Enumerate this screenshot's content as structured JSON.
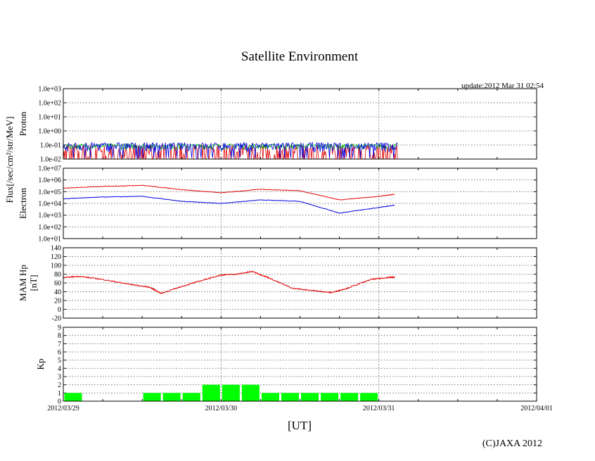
{
  "title": "Satellite Environment",
  "update": "update:2012 Mar 31 02:54",
  "copyright": "(C)JAXA 2012",
  "x_axis_label": "[UT]",
  "flux_label": "Flux[/sec/cm²/str/MeV]",
  "colors": {
    "red": "#e00000",
    "blue": "#0000e0",
    "green": "#00c000",
    "kp": "#00ff00",
    "grid": "#777777"
  },
  "chart_data": [
    {
      "type": "line",
      "name_label": "Proton",
      "log": true,
      "ylim": [
        0.01,
        1000
      ],
      "yticks": [
        "1.0e+03",
        "1.0e+02",
        "1.0e+01",
        "1.0e+00",
        "1.0e-01",
        "1.0e-02"
      ],
      "xlim": [
        "2012/03/29",
        "2012/04/01"
      ],
      "data_end": "2012/03/31 02:54",
      "grid": true,
      "series": [
        {
          "color": "red",
          "level": [
            0.01,
            0.1
          ],
          "note_noise": "dense spikes"
        },
        {
          "color": "green",
          "level": [
            0.05,
            0.12
          ]
        },
        {
          "color": "blue",
          "level": [
            0.03,
            0.15
          ]
        }
      ]
    },
    {
      "type": "line",
      "name_label": "Electron",
      "log": true,
      "ylim": [
        10,
        10000000
      ],
      "yticks": [
        "1.0e+07",
        "1.0e+06",
        "1.0e+05",
        "1.0e+04",
        "1.0e+03",
        "1.0e+02",
        "1.0e+01"
      ],
      "xlim": [
        "2012/03/29",
        "2012/04/01"
      ],
      "grid": true,
      "series": [
        {
          "color": "red",
          "x_days": [
            0,
            0.25,
            0.5,
            0.75,
            1.0,
            1.25,
            1.5,
            1.75,
            2.0,
            2.1
          ],
          "values": [
            200000,
            280000,
            350000,
            150000,
            80000,
            160000,
            120000,
            20000,
            40000,
            60000
          ]
        },
        {
          "color": "blue",
          "x_days": [
            0,
            0.25,
            0.5,
            0.75,
            1.0,
            1.25,
            1.5,
            1.75,
            2.0,
            2.1
          ],
          "values": [
            25000,
            35000,
            40000,
            15000,
            10000,
            20000,
            15000,
            1500,
            4500,
            7000
          ]
        }
      ]
    },
    {
      "type": "line",
      "ylabel": "MAM Hp [nT]",
      "ylabel_lines": [
        "MAM Hp",
        "[nT]"
      ],
      "ylim": [
        -20,
        140
      ],
      "yticks": [
        "140",
        "120",
        "100",
        "80",
        "60",
        "40",
        "20",
        "0",
        "-20"
      ],
      "xlim": [
        "2012/03/29",
        "2012/04/01"
      ],
      "grid": true,
      "series": [
        {
          "color": "red",
          "x_days": [
            0,
            0.1,
            0.25,
            0.4,
            0.55,
            0.62,
            0.75,
            0.9,
            1.0,
            1.1,
            1.2,
            1.3,
            1.45,
            1.6,
            1.7,
            1.8,
            1.95,
            2.05,
            2.1
          ],
          "values": [
            72,
            75,
            68,
            58,
            50,
            36,
            52,
            68,
            78,
            80,
            86,
            72,
            48,
            42,
            38,
            48,
            68,
            72,
            73
          ]
        }
      ]
    },
    {
      "type": "bar",
      "ylabel": "Kp",
      "ylim": [
        0,
        9
      ],
      "yticks": [
        "9",
        "8",
        "7",
        "6",
        "5",
        "4",
        "3",
        "2",
        "1",
        "0"
      ],
      "xlim": [
        "2012/03/29",
        "2012/04/01"
      ],
      "grid": true,
      "x_tick_labels": [
        "2012/03/29",
        "2012/03/30",
        "2012/03/31",
        "2012/04/01"
      ],
      "bars": [
        {
          "start_day": 0.0,
          "value": 1
        },
        {
          "start_day": 0.5,
          "value": 1
        },
        {
          "start_day": 0.625,
          "value": 1
        },
        {
          "start_day": 0.75,
          "value": 1
        },
        {
          "start_day": 0.875,
          "value": 2
        },
        {
          "start_day": 1.0,
          "value": 2
        },
        {
          "start_day": 1.125,
          "value": 2
        },
        {
          "start_day": 1.25,
          "value": 1
        },
        {
          "start_day": 1.375,
          "value": 1
        },
        {
          "start_day": 1.5,
          "value": 1
        },
        {
          "start_day": 1.625,
          "value": 1
        },
        {
          "start_day": 1.75,
          "value": 1
        },
        {
          "start_day": 1.875,
          "value": 1
        }
      ]
    }
  ]
}
